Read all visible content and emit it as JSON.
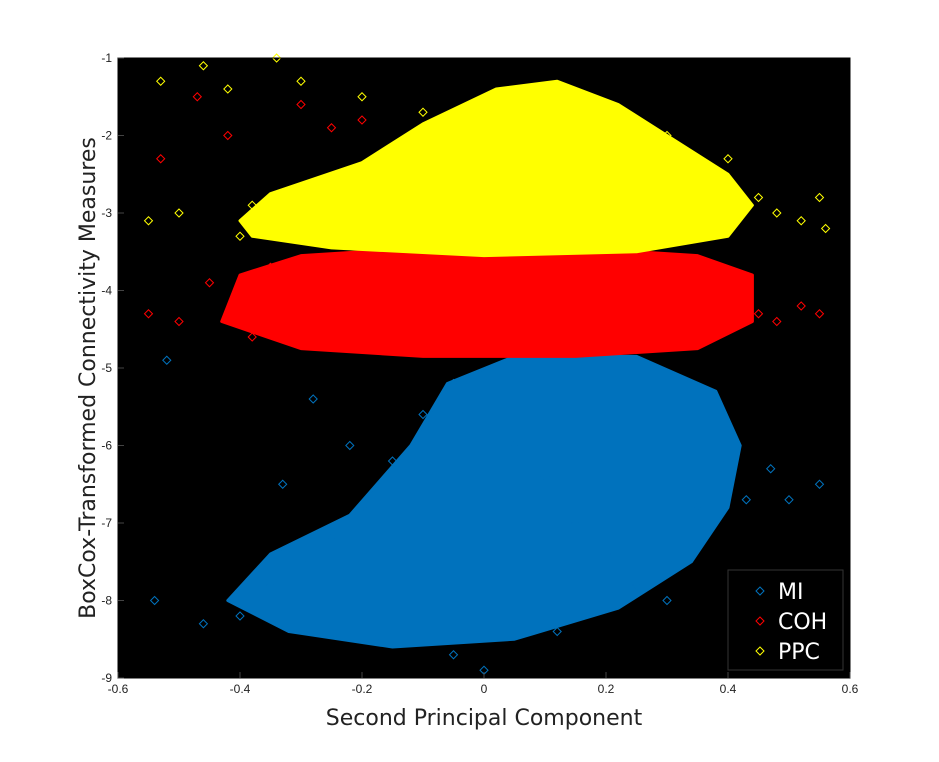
{
  "chart_data": {
    "type": "scatter",
    "title": "",
    "xlabel": "Second Principal Component",
    "ylabel": "BoxCox-Transformed Connectivity Measures",
    "xlim": [
      -0.6,
      0.6
    ],
    "ylim": [
      -9,
      -1
    ],
    "x_ticks": [
      -0.6,
      -0.4,
      -0.2,
      0,
      0.2,
      0.4,
      0.6
    ],
    "y_ticks": [
      -1,
      -2,
      -3,
      -4,
      -5,
      -6,
      -7,
      -8,
      -9
    ],
    "x_tick_labels": [
      "-0.6",
      "-0.4",
      "-0.2",
      "0",
      "0.2",
      "0.4",
      "0.6"
    ],
    "y_tick_labels": [
      "-1",
      "-2",
      "-3",
      "-4",
      "-5",
      "-6",
      "-7",
      "-8",
      "-9"
    ],
    "grid": false,
    "background": "#000000",
    "marker": "open-diamond",
    "legend_position": "bottom-right",
    "series": [
      {
        "name": "MI",
        "color": "#0072BD",
        "points": [
          [
            -0.54,
            -8.0
          ],
          [
            -0.52,
            -4.9
          ],
          [
            -0.46,
            -8.3
          ],
          [
            -0.4,
            -8.2
          ],
          [
            -0.35,
            -7.8
          ],
          [
            -0.3,
            -7.5
          ],
          [
            -0.25,
            -7.2
          ],
          [
            -0.2,
            -6.8
          ],
          [
            -0.15,
            -6.2
          ],
          [
            -0.1,
            -5.6
          ],
          [
            -0.05,
            -5.2
          ],
          [
            0.0,
            -5.5
          ],
          [
            0.05,
            -6.0
          ],
          [
            0.1,
            -6.4
          ],
          [
            0.15,
            -7.0
          ],
          [
            0.2,
            -7.4
          ],
          [
            0.25,
            -7.8
          ],
          [
            0.3,
            -7.5
          ],
          [
            0.35,
            -6.8
          ],
          [
            0.4,
            -6.2
          ],
          [
            0.43,
            -6.7
          ],
          [
            0.47,
            -6.3
          ],
          [
            0.5,
            -6.7
          ],
          [
            0.55,
            -6.5
          ],
          [
            -0.28,
            -5.4
          ],
          [
            -0.33,
            -6.5
          ],
          [
            0.12,
            -8.4
          ],
          [
            -0.05,
            -8.7
          ],
          [
            0.0,
            -8.9
          ],
          [
            0.3,
            -8.0
          ],
          [
            -0.18,
            -8.5
          ],
          [
            -0.22,
            -6.0
          ]
        ],
        "band": [
          -9.0,
          -4.8
        ]
      },
      {
        "name": "COH",
        "color": "#FF0000",
        "points": [
          [
            -0.55,
            -4.3
          ],
          [
            -0.53,
            -2.3
          ],
          [
            -0.5,
            -4.4
          ],
          [
            -0.47,
            -1.5
          ],
          [
            -0.42,
            -2.0
          ],
          [
            -0.38,
            -4.6
          ],
          [
            -0.3,
            -1.6
          ],
          [
            -0.25,
            -1.9
          ],
          [
            -0.2,
            -1.8
          ],
          [
            -0.1,
            -4.5
          ],
          [
            0.0,
            -4.3
          ],
          [
            0.1,
            -4.0
          ],
          [
            0.2,
            -4.4
          ],
          [
            0.3,
            -4.2
          ],
          [
            0.4,
            -3.9
          ],
          [
            0.45,
            -4.3
          ],
          [
            0.48,
            -4.4
          ],
          [
            0.52,
            -4.2
          ],
          [
            0.55,
            -4.3
          ],
          [
            -0.45,
            -3.9
          ],
          [
            -0.35,
            -3.7
          ],
          [
            0.35,
            -4.7
          ]
        ],
        "band": [
          -4.9,
          -3.4
        ]
      },
      {
        "name": "PPC",
        "color": "#FFFF00",
        "points": [
          [
            -0.55,
            -3.1
          ],
          [
            -0.53,
            -1.3
          ],
          [
            -0.5,
            -3.0
          ],
          [
            -0.46,
            -1.1
          ],
          [
            -0.42,
            -1.4
          ],
          [
            -0.38,
            -2.9
          ],
          [
            -0.34,
            -1.0
          ],
          [
            -0.3,
            -1.3
          ],
          [
            -0.2,
            -1.5
          ],
          [
            -0.1,
            -1.7
          ],
          [
            0.0,
            -1.6
          ],
          [
            0.1,
            -1.4
          ],
          [
            0.2,
            -1.8
          ],
          [
            0.3,
            -2.0
          ],
          [
            0.4,
            -2.3
          ],
          [
            0.45,
            -2.8
          ],
          [
            0.48,
            -3.0
          ],
          [
            0.52,
            -3.1
          ],
          [
            0.55,
            -2.8
          ],
          [
            0.56,
            -3.2
          ],
          [
            -0.4,
            -3.3
          ],
          [
            0.35,
            -3.3
          ]
        ],
        "band": [
          -3.6,
          -1.1
        ]
      }
    ]
  }
}
